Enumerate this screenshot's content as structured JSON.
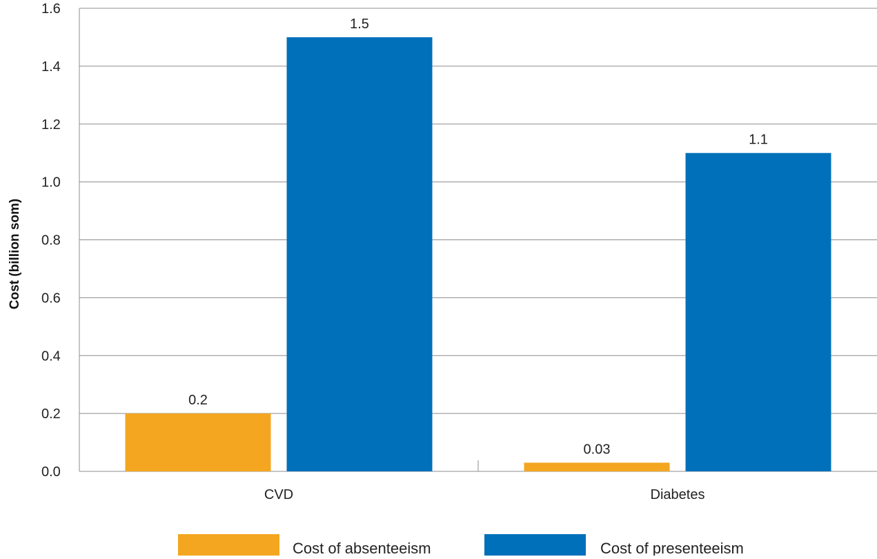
{
  "chart_data": {
    "type": "bar",
    "ylabel": "Cost (billion som)",
    "xlabel": "",
    "ylim": [
      0,
      1.6
    ],
    "y_ticks": [
      "0.0",
      "0.2",
      "0.4",
      "0.6",
      "0.8",
      "1.0",
      "1.2",
      "1.4",
      "1.6"
    ],
    "categories": [
      "CVD",
      "Diabetes"
    ],
    "series": [
      {
        "name": "Cost of absenteeism",
        "values": [
          0.2,
          0.03
        ],
        "labels": [
          "0.2",
          "0.03"
        ],
        "color": "#F4A620"
      },
      {
        "name": "Cost of presenteeism",
        "values": [
          1.5,
          1.1
        ],
        "labels": [
          "1.5",
          "1.1"
        ],
        "color": "#0070BA"
      }
    ],
    "grid": true,
    "legend_position": "bottom"
  }
}
